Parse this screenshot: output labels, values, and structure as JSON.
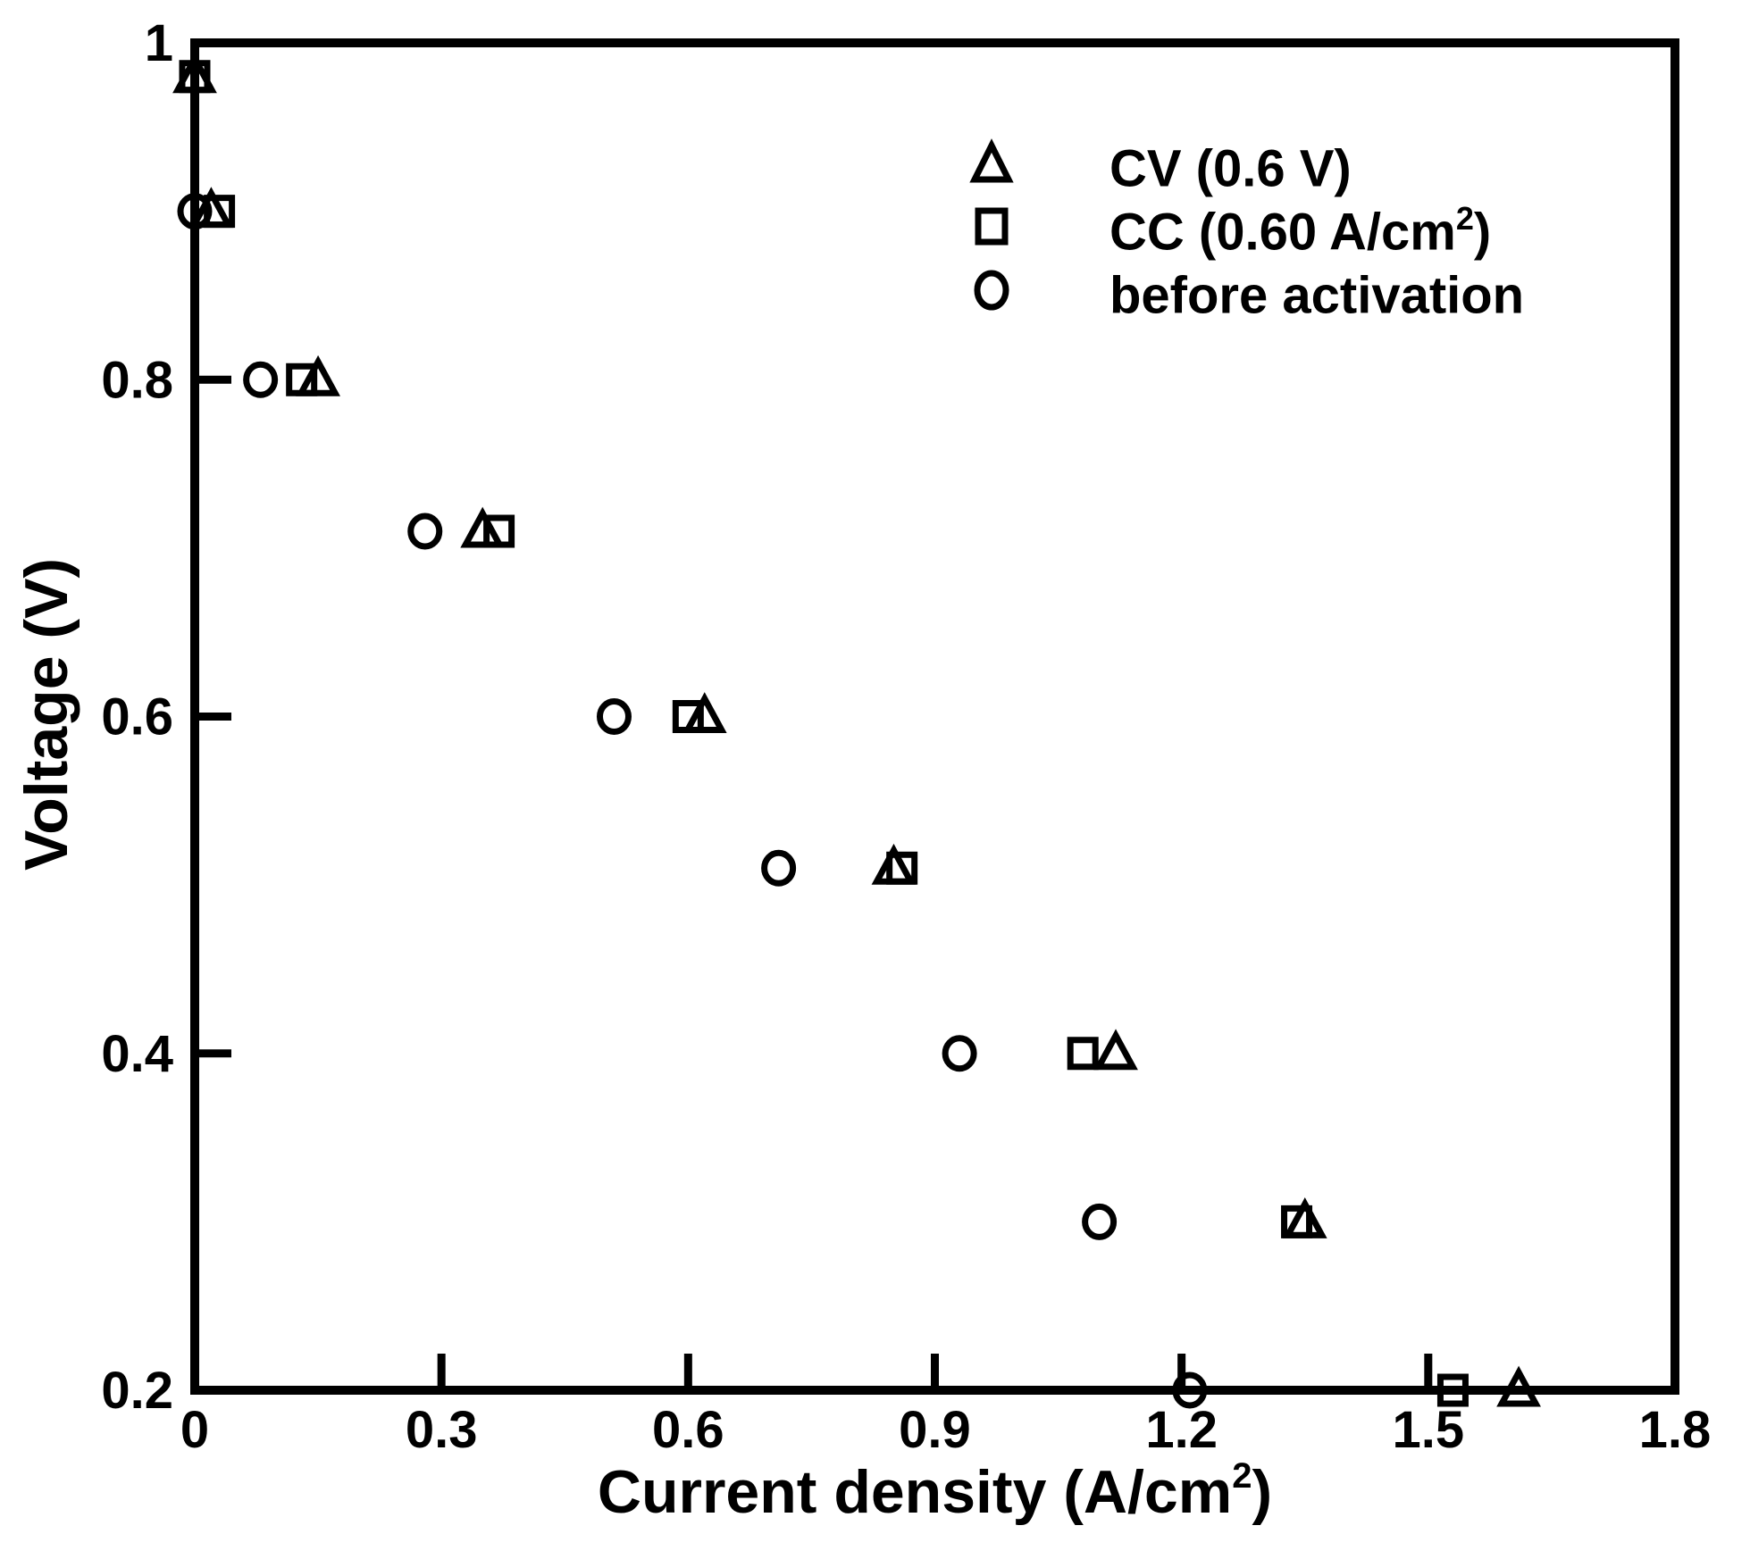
{
  "figure": {
    "background_color": "#ffffff",
    "axis_color": "#000000",
    "marker_color": "#000000"
  },
  "chart_data": {
    "type": "scatter",
    "title": "",
    "xlabel": {
      "pre": "Current density (A/cm",
      "sup": "2",
      "post": ")"
    },
    "ylabel": "Voltage (V)",
    "xlim": [
      0,
      1.8
    ],
    "ylim": [
      0.2,
      1.0
    ],
    "x_ticks": [
      0,
      0.3,
      0.6,
      0.9,
      1.2,
      1.5,
      1.8
    ],
    "x_tick_labels": [
      "0",
      "0.3",
      "0.6",
      "0.9",
      "1.2",
      "1.5",
      "1.8"
    ],
    "y_ticks": [
      0.2,
      0.4,
      0.6,
      0.8,
      1.0
    ],
    "y_tick_labels": [
      "0.2",
      "0.4",
      "0.6",
      "0.8",
      "1"
    ],
    "grid": false,
    "legend_position": "inside upper right area, no border",
    "series": [
      {
        "name": "CV (0.6 V)",
        "marker": "triangle",
        "label": {
          "pre": "CV (0.6 V)",
          "sup": "",
          "post": ""
        },
        "points": [
          [
            0,
            0.98
          ],
          [
            0.02,
            0.9
          ],
          [
            0.15,
            0.8
          ],
          [
            0.35,
            0.71
          ],
          [
            0.62,
            0.6
          ],
          [
            0.85,
            0.51
          ],
          [
            1.12,
            0.4
          ],
          [
            1.35,
            0.3
          ],
          [
            1.61,
            0.2
          ]
        ]
      },
      {
        "name": "CC (0.60 A/cm2)",
        "marker": "square",
        "label": {
          "pre": "CC (0.60 A/cm",
          "sup": "2",
          "post": ")"
        },
        "points": [
          [
            0,
            0.98
          ],
          [
            0.03,
            0.9
          ],
          [
            0.13,
            0.8
          ],
          [
            0.37,
            0.71
          ],
          [
            0.6,
            0.6
          ],
          [
            0.86,
            0.51
          ],
          [
            1.08,
            0.4
          ],
          [
            1.34,
            0.3
          ],
          [
            1.53,
            0.2
          ]
        ]
      },
      {
        "name": "before activation",
        "marker": "circle",
        "label": {
          "pre": "before activation",
          "sup": "",
          "post": ""
        },
        "points": [
          [
            0,
            0.9
          ],
          [
            0.08,
            0.8
          ],
          [
            0.28,
            0.71
          ],
          [
            0.51,
            0.6
          ],
          [
            0.71,
            0.51
          ],
          [
            0.93,
            0.4
          ],
          [
            1.1,
            0.3
          ],
          [
            1.21,
            0.2
          ]
        ]
      }
    ]
  }
}
